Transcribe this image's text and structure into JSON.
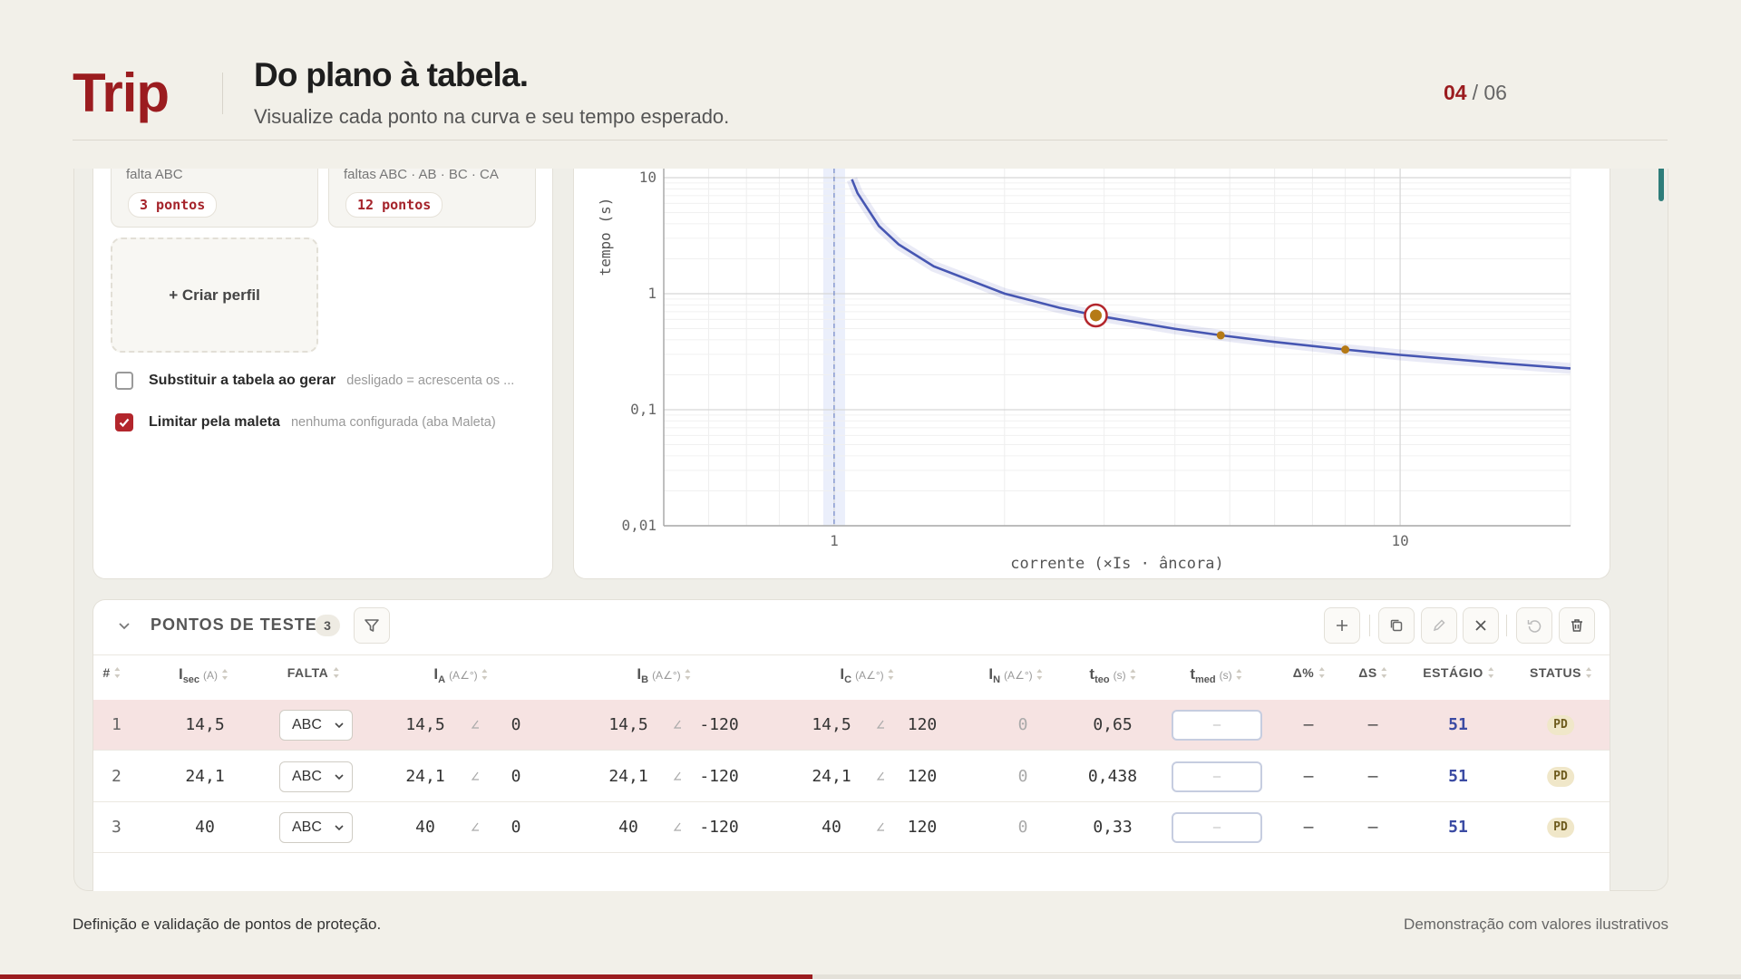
{
  "header": {
    "brand": "Trip",
    "title": "Do plano à tabela.",
    "subtitle": "Visualize cada ponto na curva e seu tempo esperado.",
    "page_current": "04",
    "page_total": "/ 06"
  },
  "profiles": {
    "cards": [
      {
        "label": "falta ABC",
        "badge": "3 pontos"
      },
      {
        "label": "faltas ABC · AB · BC · CA",
        "badge": "12 pontos"
      }
    ],
    "create": "+ Criar perfil",
    "options": [
      {
        "label": "Substituir a tabela ao gerar",
        "hint": "desligado = acrescenta os ...",
        "checked": false
      },
      {
        "label": "Limitar pela maleta",
        "hint": "nenhuma configurada (aba Maleta)",
        "checked": true
      }
    ]
  },
  "chart_data": {
    "type": "line",
    "x_label": "corrente (×Is · âncora)",
    "y_label": "tempo (s)",
    "log_x": true,
    "log_y": true,
    "grid": true,
    "xlim": [
      0.5,
      20
    ],
    "ylim": [
      0.01,
      10
    ],
    "xticks": [
      1,
      10
    ],
    "yticks": [
      10,
      1,
      {
        "value": 0.1,
        "label": "0,1"
      },
      {
        "value": 0.01,
        "label": "0,01"
      }
    ],
    "pickup": 1,
    "curve": {
      "color": "#4656b2",
      "x": [
        1.075,
        1.1,
        1.2,
        1.3,
        1.5,
        2,
        2.5,
        2.9,
        4,
        4.82,
        6,
        8,
        10,
        15,
        20
      ],
      "values": [
        9.68,
        7.34,
        3.83,
        2.66,
        1.72,
        1.003,
        0.757,
        0.65,
        0.498,
        0.438,
        0.384,
        0.33,
        0.297,
        0.252,
        0.227
      ]
    },
    "points": {
      "color": "#b57a16",
      "ring_color": "#b3262c",
      "selected": 0,
      "x": [
        2.9,
        4.82,
        8
      ],
      "values": [
        0.65,
        0.438,
        0.33
      ]
    }
  },
  "table": {
    "title": "PONTOS DE TESTE",
    "count": "3",
    "columns": [
      {
        "label": "#"
      },
      {
        "label": "I",
        "sub": "sec",
        "unit": "(A)"
      },
      {
        "label": "FALTA"
      },
      {
        "label": "I",
        "sub": "A",
        "unit": "(A∠°)"
      },
      {
        "label": "I",
        "sub": "B",
        "unit": "(A∠°)"
      },
      {
        "label": "I",
        "sub": "C",
        "unit": "(A∠°)"
      },
      {
        "label": "I",
        "sub": "N",
        "unit": "(A∠°)"
      },
      {
        "label": "t",
        "sub": "teo",
        "unit": "(s)"
      },
      {
        "label": "t",
        "sub": "med",
        "unit": "(s)"
      },
      {
        "label": "Δ%"
      },
      {
        "label": "ΔS"
      },
      {
        "label": "ESTÁGIO"
      },
      {
        "label": "STATUS"
      }
    ],
    "selected_row": 0,
    "rows": [
      [
        "1",
        "14,5",
        "ABC",
        "14,5",
        "0",
        "14,5",
        "-120",
        "14,5",
        "120",
        "0",
        "0,65",
        "–",
        "–",
        "–",
        "51",
        "PD"
      ],
      [
        "2",
        "24,1",
        "ABC",
        "24,1",
        "0",
        "24,1",
        "-120",
        "24,1",
        "120",
        "0",
        "0,438",
        "–",
        "–",
        "–",
        "51",
        "PD"
      ],
      [
        "3",
        "40",
        "ABC",
        "40",
        "0",
        "40",
        "-120",
        "40",
        "120",
        "0",
        "0,33",
        "–",
        "–",
        "–",
        "51",
        "PD"
      ]
    ]
  },
  "footer": {
    "left": "Definição e validação de pontos de proteção.",
    "right": "Demonstração com valores ilustrativos"
  }
}
